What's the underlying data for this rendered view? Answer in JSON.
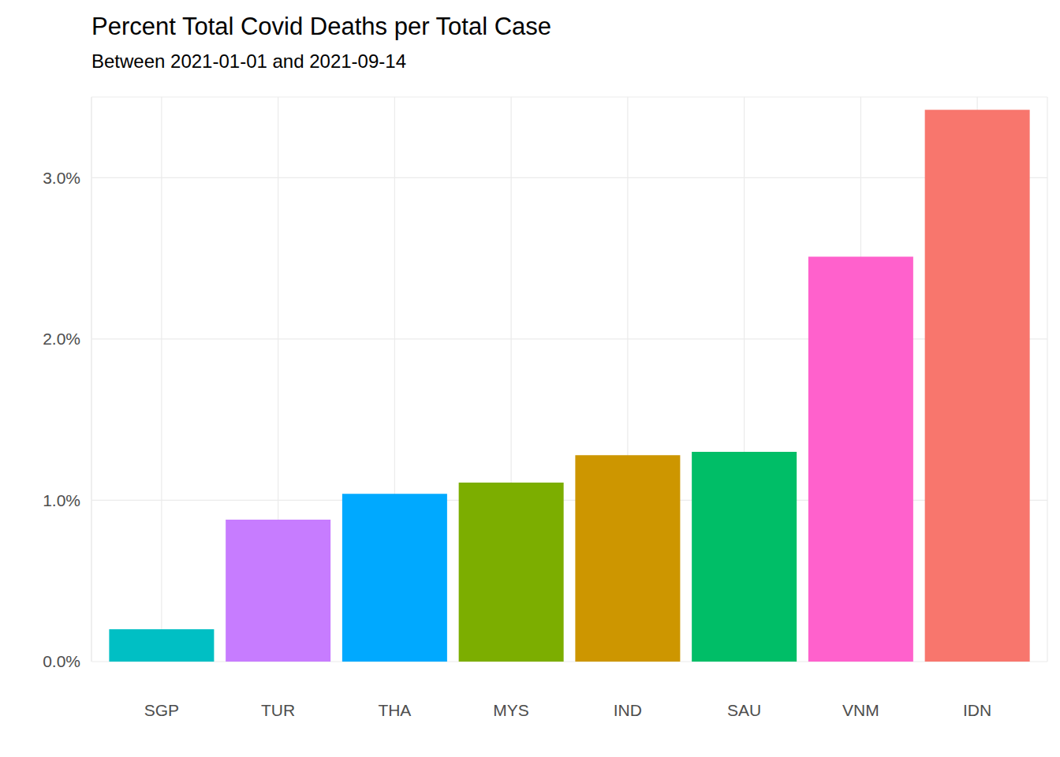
{
  "chart_data": {
    "type": "bar",
    "title": "Percent Total Covid Deaths per Total Case",
    "subtitle": "Between 2021-01-01 and 2021-09-14",
    "categories": [
      "SGP",
      "TUR",
      "THA",
      "MYS",
      "IND",
      "SAU",
      "VNM",
      "IDN"
    ],
    "values": [
      0.2,
      0.88,
      1.04,
      1.11,
      1.28,
      1.3,
      2.51,
      3.42
    ],
    "colors": [
      "#00BFC4",
      "#C77CFF",
      "#00A9FF",
      "#7CAE00",
      "#CD9600",
      "#00BE67",
      "#FF61CC",
      "#F8766D"
    ],
    "ylim": [
      0,
      3.5
    ],
    "yticks": [
      {
        "value": 0,
        "label": "0.0%"
      },
      {
        "value": 1,
        "label": "1.0%"
      },
      {
        "value": 2,
        "label": "2.0%"
      },
      {
        "value": 3,
        "label": "3.0%"
      }
    ],
    "grid": true
  }
}
